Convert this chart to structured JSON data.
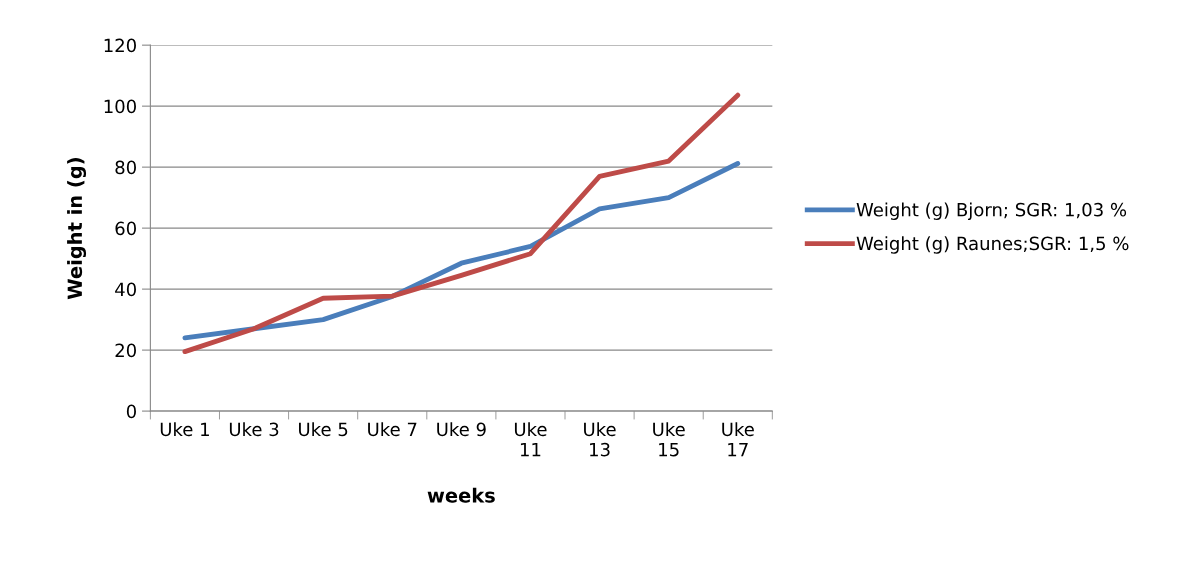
{
  "chart_data": {
    "type": "line",
    "xlabel": "weeks",
    "ylabel": "Weight in (g)",
    "categories": [
      "Uke 1",
      "Uke 3",
      "Uke 5",
      "Uke 7",
      "Uke 9",
      "Uke\n11",
      "Uke\n13",
      "Uke\n15",
      "Uke\n17"
    ],
    "series": [
      {
        "name": "Weight (g) Bjorn; SGR: 1,03 %",
        "color": "#4a7ebb",
        "values": [
          24,
          27,
          30,
          37.6,
          48.5,
          54,
          66.3,
          70,
          81.2
        ]
      },
      {
        "name": "Weight (g) Raunes;SGR: 1,5 %",
        "color": "#be4b48",
        "values": [
          19.5,
          27,
          37,
          37.7,
          44.5,
          51.6,
          77,
          82,
          103.6
        ]
      }
    ],
    "ylim": [
      0,
      120
    ],
    "yticks": [
      0,
      20,
      40,
      60,
      80,
      100,
      120
    ],
    "grid": "y",
    "legend": "right",
    "marker": "none",
    "line_style": "solid"
  }
}
